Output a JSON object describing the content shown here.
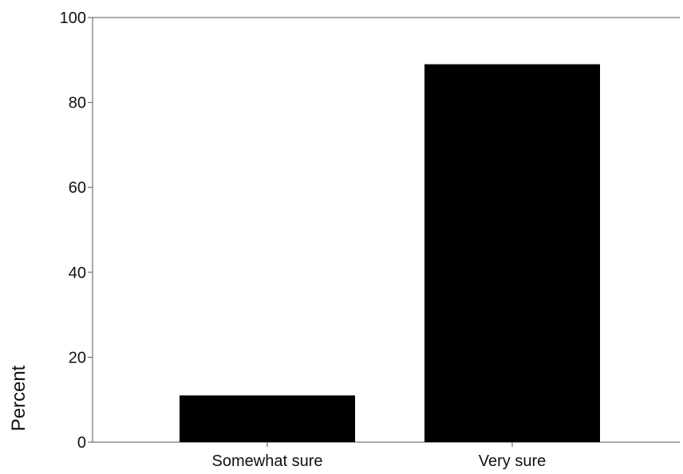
{
  "chart_data": {
    "type": "bar",
    "title": "",
    "xlabel": "",
    "ylabel": "Percent",
    "categories": [
      "Somewhat sure",
      "Very sure"
    ],
    "values": [
      11,
      89
    ],
    "ylim": [
      0,
      100
    ],
    "yticks": [
      0,
      20,
      40,
      60,
      80,
      100
    ],
    "ytick_labels": [
      "0",
      "20",
      "40",
      "60",
      "80",
      "100"
    ],
    "grid": false,
    "legend": "none",
    "bar_color": "#000000",
    "axis_color": "#555555"
  }
}
